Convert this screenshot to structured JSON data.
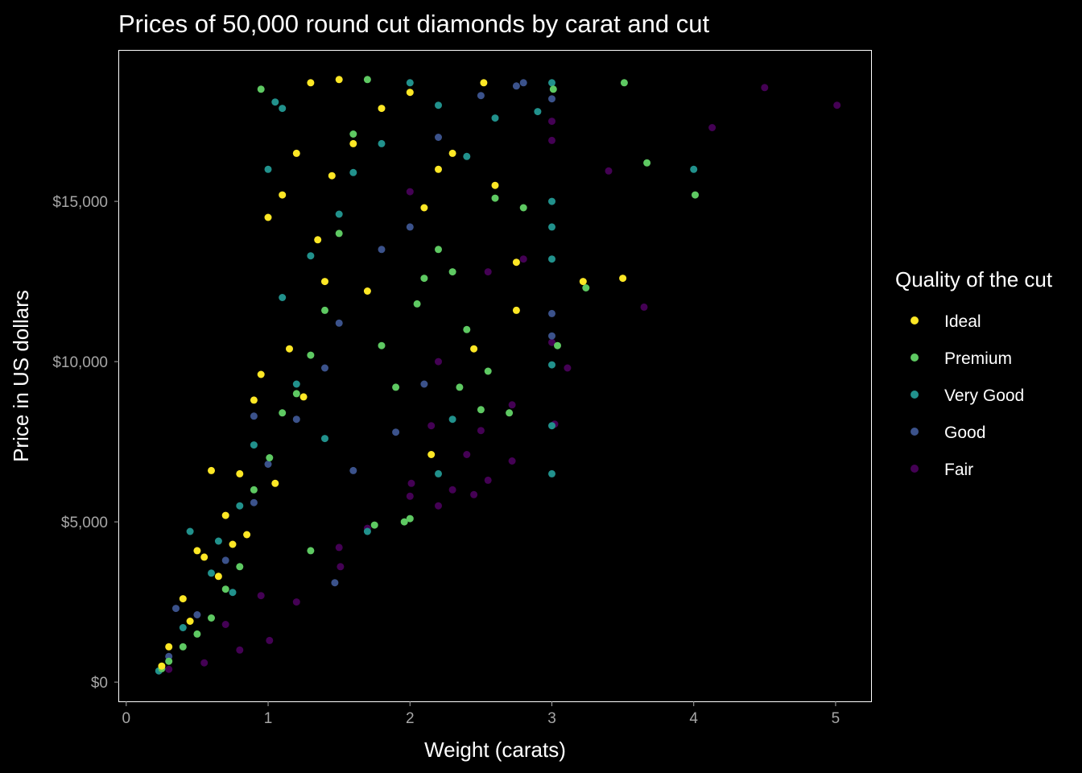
{
  "chart_data": {
    "type": "scatter",
    "title": "Prices of 50,000 round cut diamonds by carat and cut",
    "xlabel": "Weight (carats)",
    "ylabel": "Price in US dollars",
    "xlim": [
      -0.05,
      5.25
    ],
    "ylim": [
      -600,
      19700
    ],
    "x_ticks": [
      0,
      1,
      2,
      3,
      4,
      5
    ],
    "x_tick_labels": [
      "0",
      "1",
      "2",
      "3",
      "4",
      "5"
    ],
    "y_ticks": [
      0,
      5000,
      10000,
      15000
    ],
    "y_tick_labels": [
      "$0",
      "$5,000",
      "$10,000",
      "$15,000"
    ],
    "grid": false,
    "legend": {
      "title": "Quality of the cut",
      "position": "right",
      "entries": [
        {
          "name": "Ideal",
          "color": "#FDE725"
        },
        {
          "name": "Premium",
          "color": "#5EC962"
        },
        {
          "name": "Very Good",
          "color": "#21918C"
        },
        {
          "name": "Good",
          "color": "#3B528B"
        },
        {
          "name": "Fair",
          "color": "#440154"
        }
      ]
    },
    "series": [
      {
        "name": "Fair",
        "color": "#440154",
        "points": [
          [
            5.01,
            18000
          ],
          [
            4.5,
            18550
          ],
          [
            4.13,
            17300
          ],
          [
            3.65,
            11700
          ],
          [
            3.4,
            15950
          ],
          [
            3.11,
            9800
          ],
          [
            3.02,
            8050
          ],
          [
            3.0,
            10600
          ],
          [
            3.0,
            16900
          ],
          [
            3.0,
            17500
          ],
          [
            2.72,
            6900
          ],
          [
            2.72,
            8650
          ],
          [
            2.55,
            6300
          ],
          [
            2.5,
            7850
          ],
          [
            2.45,
            5850
          ],
          [
            2.4,
            7100
          ],
          [
            2.3,
            6000
          ],
          [
            2.2,
            5500
          ],
          [
            2.01,
            6200
          ],
          [
            2.0,
            5800
          ],
          [
            1.7,
            4800
          ],
          [
            1.51,
            3600
          ],
          [
            1.5,
            4200
          ],
          [
            1.2,
            2500
          ],
          [
            1.01,
            1300
          ],
          [
            0.95,
            2700
          ],
          [
            0.8,
            1000
          ],
          [
            0.7,
            1800
          ],
          [
            0.55,
            600
          ],
          [
            0.3,
            400
          ],
          [
            2.8,
            13200
          ],
          [
            2.55,
            12800
          ],
          [
            2.0,
            15300
          ],
          [
            2.2,
            10000
          ],
          [
            2.15,
            8000
          ]
        ]
      },
      {
        "name": "Good",
        "color": "#3B528B",
        "points": [
          [
            3.0,
            18200
          ],
          [
            3.0,
            11500
          ],
          [
            3.0,
            10800
          ],
          [
            2.8,
            18700
          ],
          [
            2.75,
            18600
          ],
          [
            2.5,
            18300
          ],
          [
            2.2,
            17000
          ],
          [
            2.0,
            14200
          ],
          [
            1.8,
            13500
          ],
          [
            1.5,
            11200
          ],
          [
            1.4,
            9800
          ],
          [
            1.2,
            8200
          ],
          [
            1.0,
            6800
          ],
          [
            0.9,
            5600
          ],
          [
            0.7,
            3800
          ],
          [
            0.5,
            2100
          ],
          [
            0.3,
            800
          ],
          [
            1.47,
            3100
          ],
          [
            1.6,
            6600
          ],
          [
            1.9,
            7800
          ],
          [
            2.1,
            9300
          ],
          [
            0.35,
            2300
          ],
          [
            0.9,
            8300
          ]
        ]
      },
      {
        "name": "Very Good",
        "color": "#21918C",
        "points": [
          [
            4.0,
            16000
          ],
          [
            3.0,
            6500
          ],
          [
            3.0,
            8000
          ],
          [
            3.0,
            9900
          ],
          [
            3.0,
            13200
          ],
          [
            3.0,
            14200
          ],
          [
            3.0,
            15000
          ],
          [
            3.0,
            18700
          ],
          [
            2.9,
            17800
          ],
          [
            2.6,
            17600
          ],
          [
            2.4,
            16400
          ],
          [
            2.2,
            18000
          ],
          [
            2.0,
            18700
          ],
          [
            1.8,
            16800
          ],
          [
            1.6,
            15900
          ],
          [
            1.5,
            14600
          ],
          [
            1.3,
            13300
          ],
          [
            1.1,
            12000
          ],
          [
            1.0,
            16000
          ],
          [
            1.05,
            18100
          ],
          [
            1.1,
            17900
          ],
          [
            0.9,
            7400
          ],
          [
            0.8,
            5500
          ],
          [
            0.6,
            3400
          ],
          [
            0.4,
            1700
          ],
          [
            0.23,
            350
          ],
          [
            0.45,
            4700
          ],
          [
            1.7,
            4700
          ],
          [
            2.2,
            6500
          ],
          [
            2.3,
            8200
          ],
          [
            1.2,
            9300
          ],
          [
            0.75,
            2800
          ],
          [
            0.65,
            4400
          ],
          [
            1.4,
            7600
          ]
        ]
      },
      {
        "name": "Premium",
        "color": "#5EC962",
        "points": [
          [
            4.01,
            15200
          ],
          [
            3.67,
            16200
          ],
          [
            3.51,
            18700
          ],
          [
            3.24,
            12300
          ],
          [
            3.04,
            10500
          ],
          [
            3.01,
            18500
          ],
          [
            2.8,
            14800
          ],
          [
            2.7,
            8400
          ],
          [
            2.55,
            9700
          ],
          [
            2.5,
            8500
          ],
          [
            2.4,
            11000
          ],
          [
            2.3,
            12800
          ],
          [
            2.2,
            13500
          ],
          [
            2.1,
            12600
          ],
          [
            2.05,
            11800
          ],
          [
            2.0,
            5100
          ],
          [
            1.96,
            5000
          ],
          [
            1.9,
            9200
          ],
          [
            1.8,
            10500
          ],
          [
            1.7,
            18800
          ],
          [
            1.6,
            17100
          ],
          [
            1.5,
            14000
          ],
          [
            1.4,
            11600
          ],
          [
            1.3,
            10200
          ],
          [
            1.2,
            9000
          ],
          [
            1.1,
            8400
          ],
          [
            1.01,
            7000
          ],
          [
            0.95,
            18500
          ],
          [
            0.9,
            6000
          ],
          [
            0.8,
            3600
          ],
          [
            0.7,
            2900
          ],
          [
            0.6,
            2000
          ],
          [
            0.5,
            1500
          ],
          [
            0.4,
            1100
          ],
          [
            0.3,
            650
          ],
          [
            0.25,
            420
          ],
          [
            2.6,
            15100
          ],
          [
            2.35,
            9200
          ],
          [
            1.75,
            4900
          ],
          [
            1.3,
            4100
          ]
        ]
      },
      {
        "name": "Ideal",
        "color": "#FDE725",
        "points": [
          [
            3.5,
            12600
          ],
          [
            3.22,
            12500
          ],
          [
            2.75,
            11600
          ],
          [
            2.75,
            13100
          ],
          [
            2.6,
            15500
          ],
          [
            2.52,
            18700
          ],
          [
            2.0,
            18400
          ],
          [
            1.8,
            17900
          ],
          [
            1.6,
            16800
          ],
          [
            1.5,
            18800
          ],
          [
            1.3,
            18700
          ],
          [
            1.2,
            16500
          ],
          [
            1.1,
            15200
          ],
          [
            1.0,
            14500
          ],
          [
            0.95,
            9600
          ],
          [
            0.9,
            8800
          ],
          [
            0.8,
            6500
          ],
          [
            0.7,
            5200
          ],
          [
            0.6,
            6600
          ],
          [
            0.5,
            4100
          ],
          [
            0.4,
            2600
          ],
          [
            0.3,
            1100
          ],
          [
            0.25,
            500
          ],
          [
            1.15,
            10400
          ],
          [
            1.4,
            12500
          ],
          [
            1.25,
            8900
          ],
          [
            1.35,
            13800
          ],
          [
            1.45,
            15800
          ],
          [
            1.7,
            12200
          ],
          [
            2.1,
            14800
          ],
          [
            2.3,
            16500
          ],
          [
            2.45,
            10400
          ],
          [
            0.85,
            4600
          ],
          [
            0.65,
            3300
          ],
          [
            0.55,
            3900
          ],
          [
            0.45,
            1900
          ],
          [
            0.75,
            4300
          ],
          [
            1.05,
            6200
          ],
          [
            2.15,
            7100
          ],
          [
            2.2,
            16000
          ]
        ]
      }
    ]
  }
}
